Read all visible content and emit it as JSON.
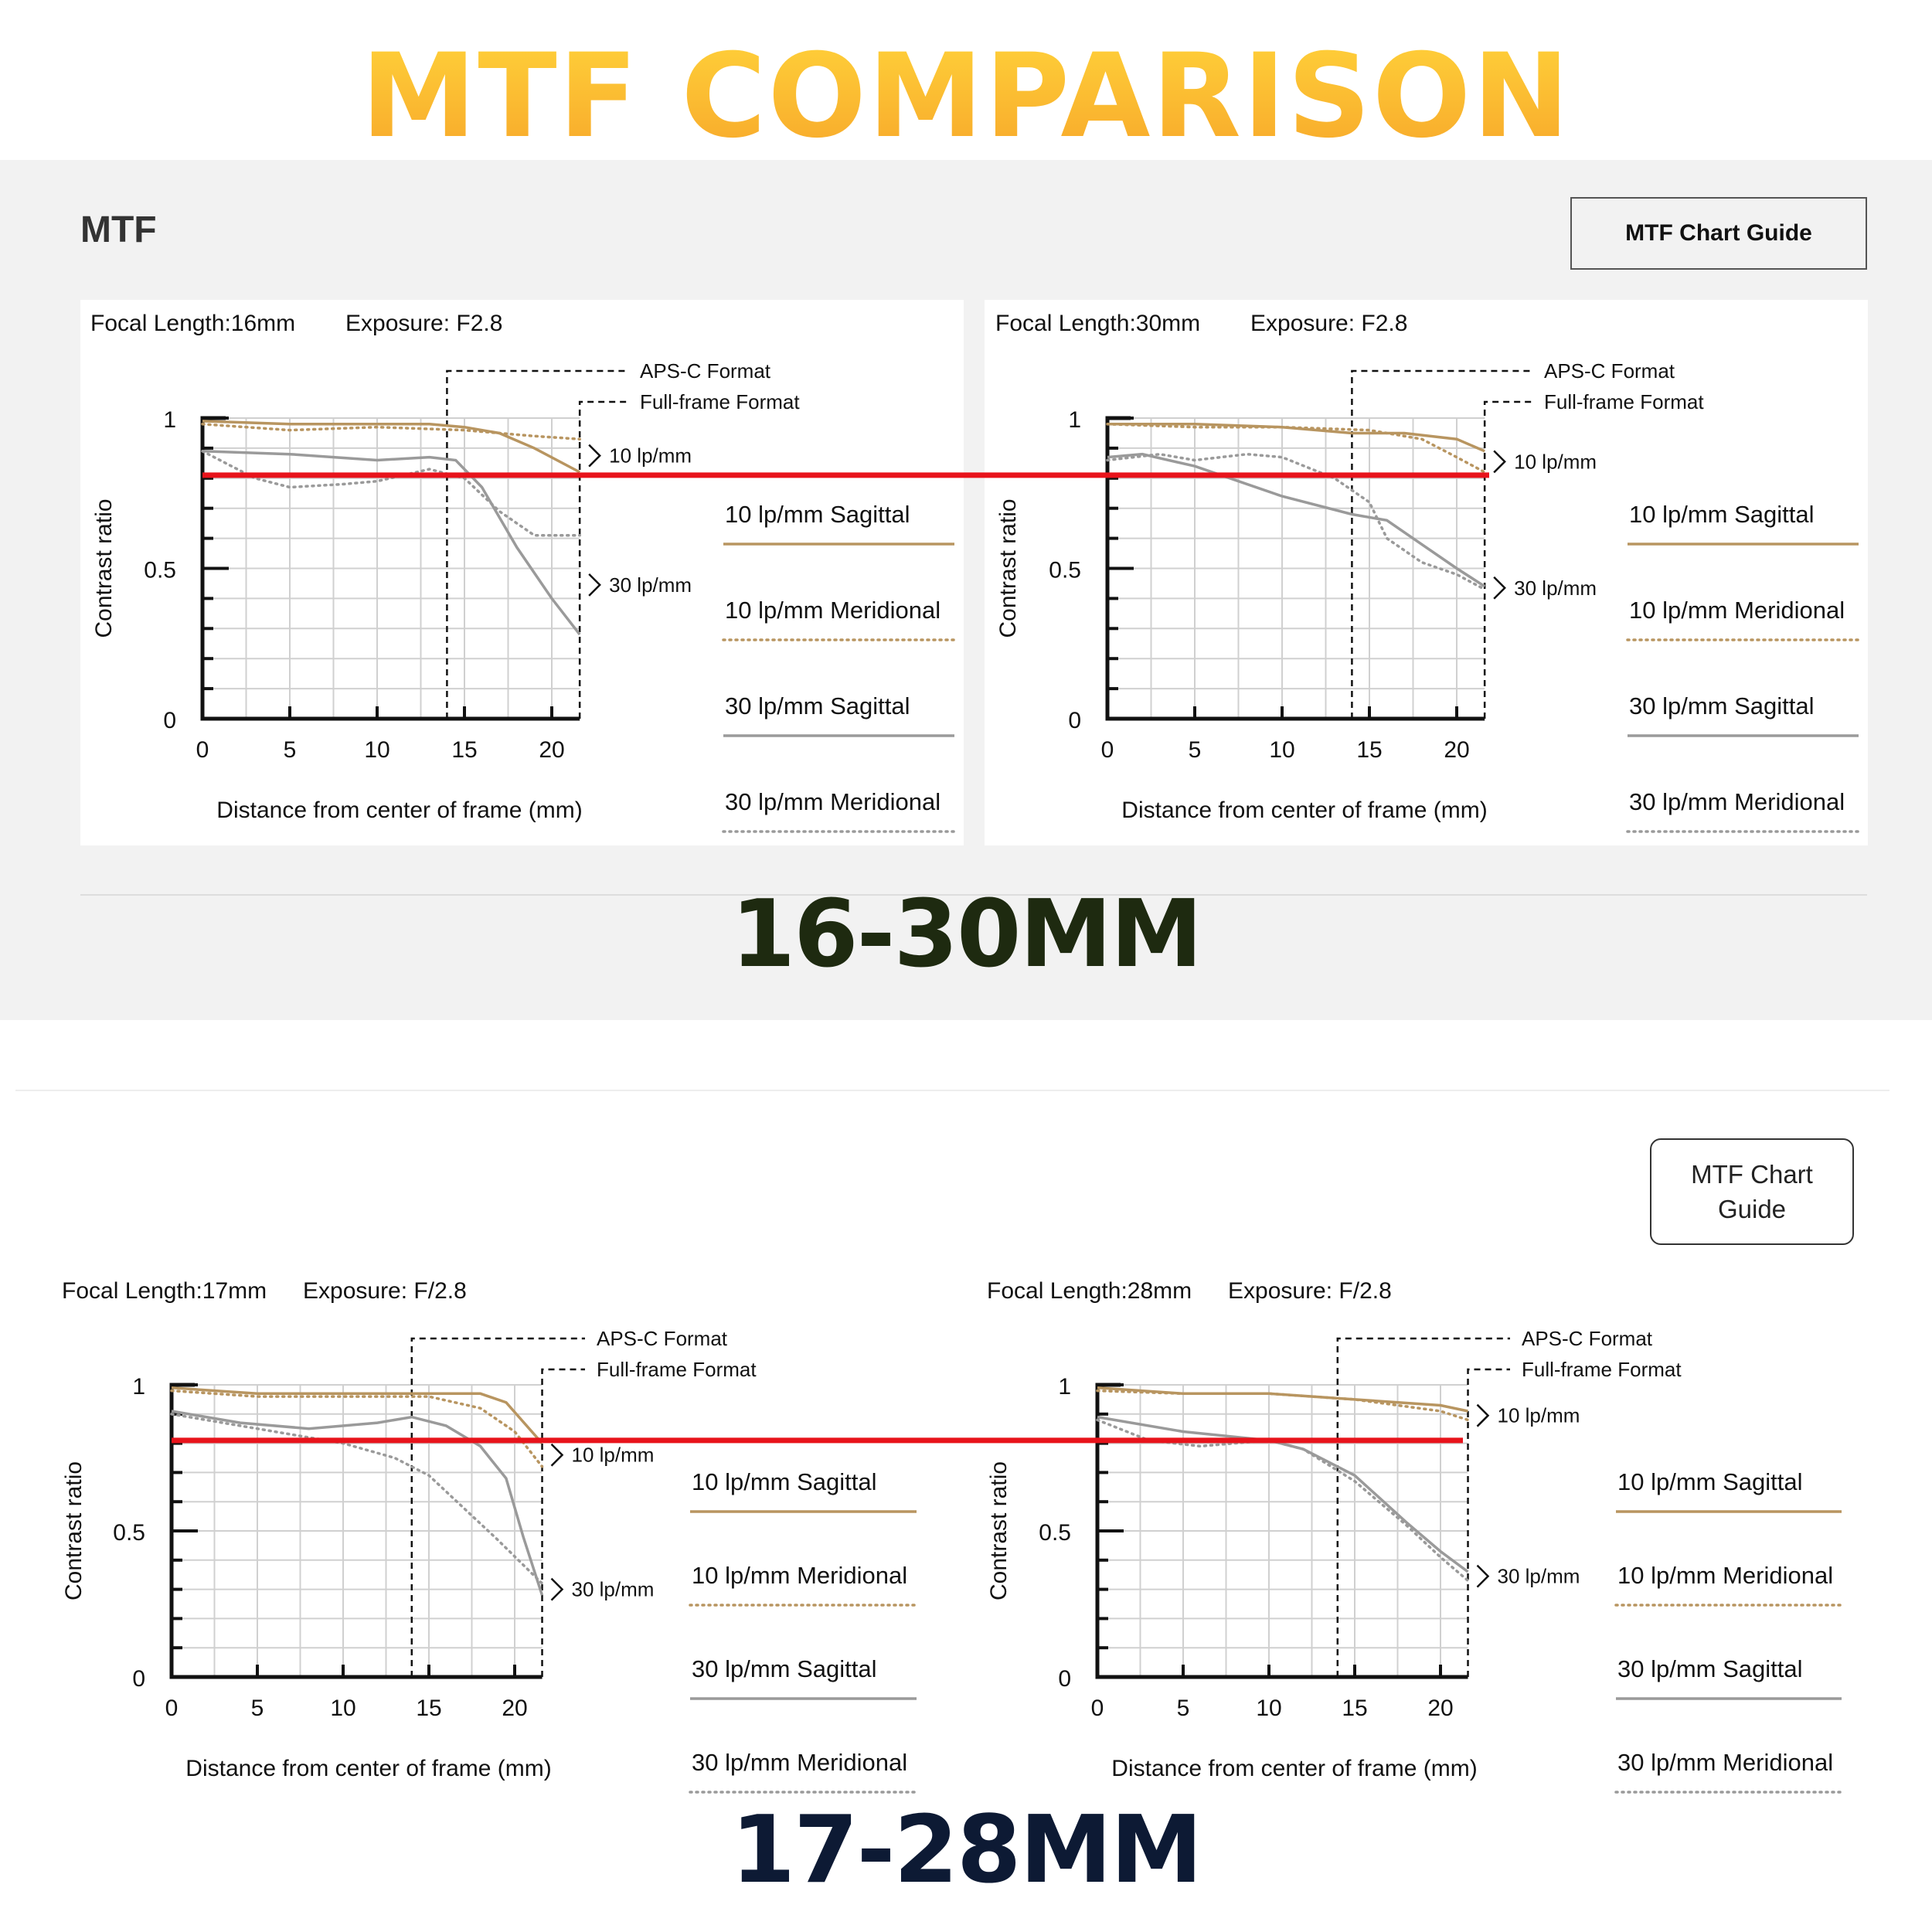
{
  "title": "MTF COMPARISON",
  "section1": {
    "label": "MTF",
    "guide_button": "MTF Chart Guide",
    "lens_label": "16-30MM"
  },
  "section2": {
    "guide_button": "MTF Chart Guide",
    "lens_label": "17-28MM"
  },
  "colors": {
    "title_gradient": [
      "#ffd23a",
      "#f7a72a"
    ],
    "lp10": "#b89560",
    "lp30": "#9a9a9a",
    "reference_line": "#e8131b",
    "section1_bg": "#f2f2f2"
  },
  "common_labels": {
    "ylabel": "Contrast ratio",
    "xlabel": "Distance from center of frame (mm)",
    "aps_c": "APS-C Format",
    "full_frame": "Full-frame Format",
    "lp10": "10 lp/mm",
    "lp30": "30 lp/mm"
  },
  "chart_data": [
    {
      "type": "line",
      "focal_length": "Focal Length:16mm",
      "exposure": "Exposure: F2.8",
      "xlabel": "Distance from center of frame (mm)",
      "ylabel": "Contrast ratio",
      "xlim": [
        0,
        21.6
      ],
      "ylim": [
        0,
        1
      ],
      "x_ticks": [
        0,
        5,
        10,
        15,
        20
      ],
      "y_tick_labels": [
        "0",
        "0.5",
        "1"
      ],
      "aps_c_boundary_mm": 14,
      "full_frame_boundary_mm": 21.6,
      "reference_line_y": 0.81,
      "series": [
        {
          "name": "10 lp/mm Sagittal",
          "x": [
            0,
            5,
            10,
            13,
            15,
            17,
            19,
            21.6
          ],
          "y": [
            0.99,
            0.98,
            0.98,
            0.98,
            0.97,
            0.95,
            0.9,
            0.82
          ]
        },
        {
          "name": "10 lp/mm Meridional",
          "x": [
            0,
            5,
            10,
            15,
            17,
            19,
            21.6
          ],
          "y": [
            0.98,
            0.96,
            0.97,
            0.96,
            0.95,
            0.94,
            0.93
          ]
        },
        {
          "name": "30 lp/mm Sagittal",
          "x": [
            0,
            5,
            10,
            13,
            14.5,
            16,
            18,
            20,
            21.6
          ],
          "y": [
            0.89,
            0.88,
            0.86,
            0.87,
            0.86,
            0.77,
            0.57,
            0.4,
            0.28
          ]
        },
        {
          "name": "30 lp/mm Meridional",
          "x": [
            0,
            3,
            5,
            8,
            10,
            13,
            15,
            17,
            19,
            21.6
          ],
          "y": [
            0.89,
            0.8,
            0.77,
            0.78,
            0.79,
            0.83,
            0.8,
            0.69,
            0.61,
            0.61
          ]
        }
      ]
    },
    {
      "type": "line",
      "focal_length": "Focal Length:30mm",
      "exposure": "Exposure: F2.8",
      "xlabel": "Distance from center of frame (mm)",
      "ylabel": "Contrast ratio",
      "xlim": [
        0,
        21.6
      ],
      "ylim": [
        0,
        1
      ],
      "x_ticks": [
        0,
        5,
        10,
        15,
        20
      ],
      "y_tick_labels": [
        "0",
        "0.5",
        "1"
      ],
      "aps_c_boundary_mm": 14,
      "full_frame_boundary_mm": 21.6,
      "reference_line_y": 0.81,
      "series": [
        {
          "name": "10 lp/mm Sagittal",
          "x": [
            0,
            5,
            10,
            14,
            17,
            20,
            21.6
          ],
          "y": [
            0.98,
            0.98,
            0.97,
            0.95,
            0.95,
            0.93,
            0.89
          ]
        },
        {
          "name": "10 lp/mm Meridional",
          "x": [
            0,
            5,
            10,
            15,
            18,
            20,
            21.6
          ],
          "y": [
            0.98,
            0.97,
            0.97,
            0.96,
            0.93,
            0.87,
            0.82
          ]
        },
        {
          "name": "30 lp/mm Sagittal",
          "x": [
            0,
            2,
            5,
            10,
            14,
            16,
            18,
            20,
            21.6
          ],
          "y": [
            0.87,
            0.88,
            0.84,
            0.74,
            0.68,
            0.66,
            0.58,
            0.5,
            0.44
          ]
        },
        {
          "name": "30 lp/mm Meridional",
          "x": [
            0,
            3,
            5,
            8,
            10,
            13,
            15,
            16,
            18,
            20,
            21.6
          ],
          "y": [
            0.86,
            0.88,
            0.86,
            0.88,
            0.87,
            0.8,
            0.72,
            0.6,
            0.52,
            0.48,
            0.43
          ]
        }
      ]
    },
    {
      "type": "line",
      "focal_length": "Focal Length:17mm",
      "exposure": "Exposure: F/2.8",
      "xlabel": "Distance from center of frame (mm)",
      "ylabel": "Contrast ratio",
      "xlim": [
        0,
        21.6
      ],
      "ylim": [
        0,
        1
      ],
      "x_ticks": [
        0,
        5,
        10,
        15,
        20
      ],
      "y_tick_labels": [
        "0",
        "0.5",
        "1"
      ],
      "aps_c_boundary_mm": 14,
      "full_frame_boundary_mm": 21.6,
      "reference_line_y": 0.81,
      "series": [
        {
          "name": "10 lp/mm Sagittal",
          "x": [
            0,
            5,
            10,
            15,
            18,
            19.5,
            21.6
          ],
          "y": [
            0.99,
            0.97,
            0.97,
            0.97,
            0.97,
            0.94,
            0.8
          ]
        },
        {
          "name": "10 lp/mm Meridional",
          "x": [
            0,
            5,
            10,
            15,
            18,
            20,
            21.6
          ],
          "y": [
            0.98,
            0.96,
            0.96,
            0.96,
            0.92,
            0.84,
            0.72
          ]
        },
        {
          "name": "30 lp/mm Sagittal",
          "x": [
            0,
            4,
            8,
            12,
            14,
            16,
            18,
            19.5,
            20.5,
            21.6
          ],
          "y": [
            0.91,
            0.87,
            0.85,
            0.87,
            0.89,
            0.86,
            0.79,
            0.68,
            0.48,
            0.28
          ]
        },
        {
          "name": "30 lp/mm Meridional",
          "x": [
            0,
            5,
            10,
            13,
            15,
            17,
            19,
            21.6
          ],
          "y": [
            0.9,
            0.85,
            0.8,
            0.75,
            0.69,
            0.58,
            0.47,
            0.32
          ]
        }
      ]
    },
    {
      "type": "line",
      "focal_length": "Focal Length:28mm",
      "exposure": "Exposure: F/2.8",
      "xlabel": "Distance from center of frame (mm)",
      "ylabel": "Contrast ratio",
      "xlim": [
        0,
        21.6
      ],
      "ylim": [
        0,
        1
      ],
      "x_ticks": [
        0,
        5,
        10,
        15,
        20
      ],
      "y_tick_labels": [
        "0",
        "0.5",
        "1"
      ],
      "aps_c_boundary_mm": 14,
      "full_frame_boundary_mm": 21.6,
      "reference_line_y": 0.81,
      "series": [
        {
          "name": "10 lp/mm Sagittal",
          "x": [
            0,
            5,
            10,
            15,
            20,
            21.6
          ],
          "y": [
            0.99,
            0.97,
            0.97,
            0.95,
            0.93,
            0.91
          ]
        },
        {
          "name": "10 lp/mm Meridional",
          "x": [
            0,
            5,
            10,
            15,
            20,
            21.6
          ],
          "y": [
            0.98,
            0.97,
            0.97,
            0.95,
            0.91,
            0.88
          ]
        },
        {
          "name": "30 lp/mm Sagittal",
          "x": [
            0,
            5,
            10,
            12,
            15,
            18,
            20,
            21.6
          ],
          "y": [
            0.89,
            0.84,
            0.81,
            0.78,
            0.69,
            0.53,
            0.43,
            0.36
          ]
        },
        {
          "name": "30 lp/mm Meridional",
          "x": [
            0,
            3,
            6,
            10,
            12,
            15,
            18,
            20,
            21.6
          ],
          "y": [
            0.88,
            0.81,
            0.79,
            0.81,
            0.78,
            0.67,
            0.52,
            0.41,
            0.33
          ]
        }
      ]
    }
  ]
}
